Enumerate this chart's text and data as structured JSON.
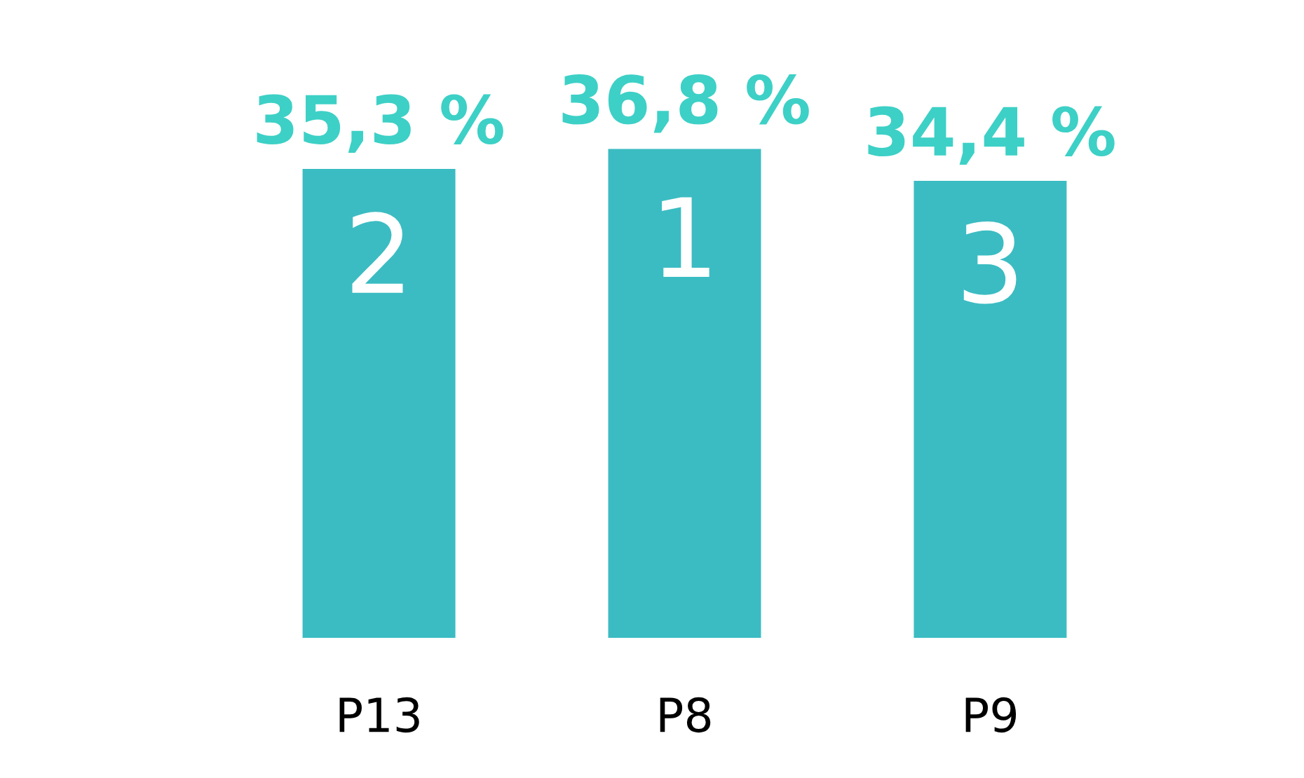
{
  "chart_data": {
    "type": "bar",
    "categories": [
      "P13",
      "P8",
      "P9"
    ],
    "values": [
      35.3,
      36.8,
      34.4
    ],
    "value_labels": [
      "35,3 %",
      "36,8 %",
      "34,4 %"
    ],
    "color": "#3bbcc2",
    "annotations": [
      "2",
      "1",
      "3"
    ],
    "grid": false,
    "legend": false
  }
}
